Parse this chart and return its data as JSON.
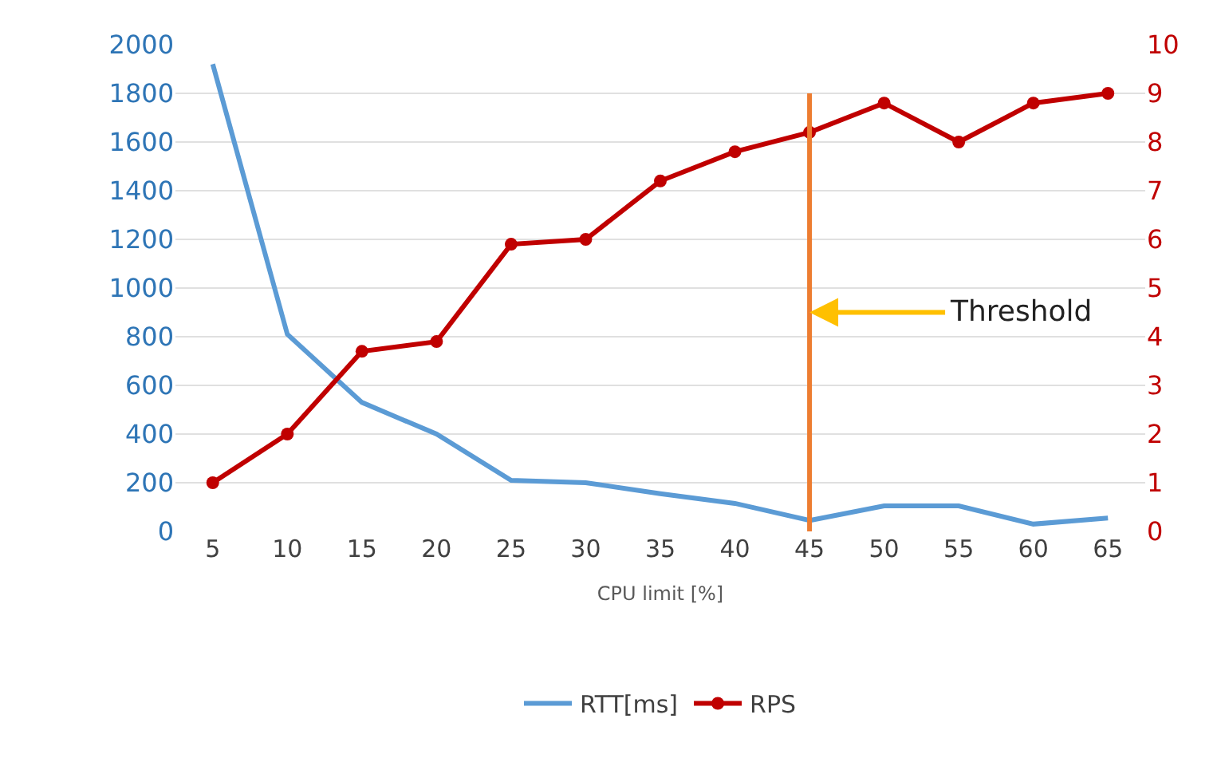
{
  "chart_data": {
    "type": "line",
    "xlabel": "CPU limit [%]",
    "categories": [
      "5",
      "10",
      "15",
      "20",
      "25",
      "30",
      "35",
      "40",
      "45",
      "50",
      "55",
      "60",
      "65"
    ],
    "series": [
      {
        "name": "RTT[ms]",
        "color": "#5b9bd5",
        "marker": "none",
        "values": [
          1920,
          810,
          530,
          400,
          210,
          200,
          155,
          115,
          45,
          105,
          105,
          30,
          55
        ]
      },
      {
        "name": "RPS",
        "color": "#c00000",
        "marker": "circle",
        "axis": "y2",
        "values": [
          1.0,
          2.0,
          3.7,
          3.9,
          5.9,
          6.0,
          7.2,
          7.8,
          8.2,
          8.8,
          8.0,
          8.8,
          9.0
        ]
      }
    ],
    "ylim": [
      0,
      2000
    ],
    "yticks": [
      0,
      200,
      400,
      600,
      800,
      1000,
      1200,
      1400,
      1600,
      1800,
      2000
    ],
    "y2lim": [
      0,
      10
    ],
    "y2ticks": [
      0,
      1,
      2,
      3,
      4,
      5,
      6,
      7,
      8,
      9,
      10
    ],
    "ref_lines": [
      {
        "axis": "x",
        "value": "45",
        "label": "Threshold",
        "color": "#ed7d31"
      }
    ],
    "grid": "y",
    "legend": "bottom",
    "line_style": "solid"
  }
}
